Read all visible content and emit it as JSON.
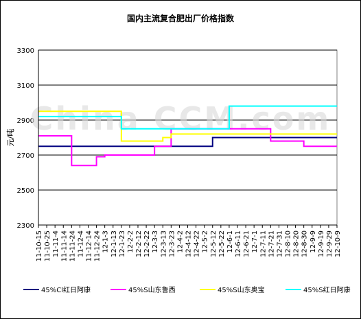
{
  "chart_data": {
    "type": "line",
    "title": "国内主流复合肥出厂价格指数",
    "ylabel": "元/吨",
    "xlabel": "",
    "ylim": [
      2300,
      3300
    ],
    "yticks": [
      2300,
      2500,
      2700,
      2900,
      3100,
      3300
    ],
    "grid": "horizontal",
    "legend_position": "bottom",
    "watermark": "China CCM.com",
    "categories": [
      "11-10-15",
      "11-10-25",
      "11-11-4",
      "11-11-14",
      "11-11-24",
      "11-12-4",
      "11-12-14",
      "11-12-24",
      "12-1-3",
      "12-1-13",
      "12-1-23",
      "12-2-2",
      "12-2-12",
      "12-2-22",
      "12-3-3",
      "12-3-13",
      "12-3-23",
      "12-4-2",
      "12-4-12",
      "12-4-22",
      "12-5-2",
      "12-5-12",
      "12-5-22",
      "12-6-1",
      "12-6-11",
      "12-6-21",
      "12-7-1",
      "12-7-11",
      "12-7-21",
      "12-7-31",
      "12-8-10",
      "12-8-20",
      "12-8-30",
      "12-9-9",
      "12-9-19",
      "12-9-29",
      "12-10-9"
    ],
    "series": [
      {
        "name": "45%Cl红日阿康",
        "color": "#000080",
        "values": [
          2750,
          2750,
          2750,
          2750,
          2750,
          2750,
          2750,
          2750,
          2750,
          2750,
          2750,
          2750,
          2750,
          2750,
          2750,
          2750,
          2750,
          2750,
          2750,
          2750,
          2750,
          2800,
          2800,
          2800,
          2800,
          2800,
          2800,
          2800,
          2800,
          2800,
          2800,
          2800,
          2800,
          2800,
          2800,
          2800,
          2800
        ]
      },
      {
        "name": "45%S山东鲁西",
        "color": "#ff00ff",
        "values": [
          2810,
          2810,
          2810,
          2810,
          2640,
          2640,
          2640,
          2690,
          2700,
          2700,
          2700,
          2700,
          2700,
          2700,
          2750,
          2750,
          2850,
          2850,
          2850,
          2850,
          2850,
          2850,
          2850,
          2850,
          2850,
          2850,
          2850,
          2850,
          2780,
          2780,
          2780,
          2780,
          2750,
          2750,
          2750,
          2750,
          2750
        ]
      },
      {
        "name": "45%S山东奥宝",
        "color": "#ffff00",
        "values": [
          2950,
          2950,
          2950,
          2950,
          2950,
          2950,
          2950,
          2950,
          2950,
          2950,
          2780,
          2780,
          2780,
          2780,
          2780,
          2800,
          2820,
          2820,
          2820,
          2820,
          2820,
          2820,
          2820,
          2820,
          2820,
          2820,
          2820,
          2820,
          2820,
          2820,
          2820,
          2820,
          2820,
          2820,
          2820,
          2820,
          2820
        ]
      },
      {
        "name": "45%S红日阿康",
        "color": "#00ffff",
        "values": [
          2920,
          2920,
          2920,
          2920,
          2920,
          2920,
          2920,
          2920,
          2920,
          2920,
          2850,
          2850,
          2850,
          2850,
          2850,
          2850,
          2850,
          2850,
          2850,
          2850,
          2850,
          2850,
          2850,
          2980,
          2980,
          2980,
          2980,
          2980,
          2980,
          2980,
          2980,
          2980,
          2980,
          2980,
          2980,
          2980,
          2980
        ]
      }
    ]
  }
}
